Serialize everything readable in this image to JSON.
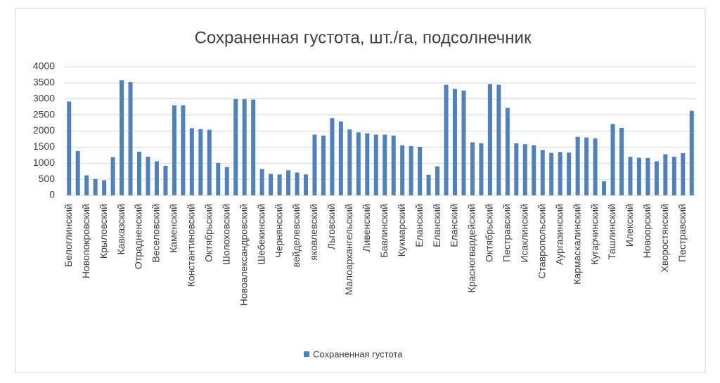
{
  "chart_data": {
    "type": "bar",
    "title": "Сохраненная густота, шт./га, подсолнечник",
    "categories": [
      "Белоглинский",
      null,
      "Новопокровский",
      null,
      "Крыловский",
      null,
      "Кавказский",
      null,
      "Отрадненский",
      null,
      "Веселовский",
      null,
      "Каменский",
      null,
      "Константиновский",
      null,
      "Октябрьский",
      null,
      "Шолоховский",
      null,
      "Новоалександровский",
      null,
      "Шебекинский",
      null,
      "Чернянский",
      null,
      "вейделевский",
      null,
      "яковлевский",
      null,
      "Льговский",
      null,
      "Малоархангельский",
      null,
      "Ливенский",
      null,
      "Бавлинский",
      null,
      "Кукмарский",
      null,
      "Еланский",
      null,
      "Еланский",
      null,
      "Еланский",
      null,
      "Красногвардейский",
      null,
      "Октябрьский",
      null,
      "Пестравский",
      null,
      "Исаклинский",
      null,
      "Ставропольский",
      null,
      "Аургазинский",
      null,
      "Кармаскалинский",
      null,
      "Кугарчинский",
      null,
      "Ташлинский",
      null,
      "Илекский",
      null,
      "Новоорский",
      null,
      "Хворостянский",
      null,
      "Пестравский",
      null
    ],
    "series": [
      {
        "name": "Сохраненная густота",
        "color": "#4f81bd",
        "values": [
          2920,
          1380,
          620,
          510,
          470,
          1190,
          3580,
          3520,
          1360,
          1200,
          1060,
          920,
          2800,
          2800,
          2090,
          2060,
          2040,
          1010,
          880,
          3000,
          2990,
          2980,
          820,
          670,
          650,
          780,
          710,
          650,
          1890,
          1860,
          2400,
          2300,
          2050,
          1960,
          1930,
          1890,
          1890,
          1860,
          1560,
          1530,
          1510,
          640,
          900,
          3440,
          3310,
          3260,
          1650,
          1620,
          3460,
          3440,
          2720,
          1620,
          1590,
          1560,
          1410,
          1320,
          1350,
          1330,
          1820,
          1800,
          1770,
          440,
          2220,
          2100,
          1200,
          1170,
          1160,
          1060,
          1280,
          1200,
          1310,
          2630
        ]
      }
    ],
    "ylim": [
      0,
      4000
    ],
    "yticks": [
      0,
      500,
      1000,
      1500,
      2000,
      2500,
      3000,
      3500,
      4000
    ],
    "grid": true,
    "legend": "bottom"
  }
}
